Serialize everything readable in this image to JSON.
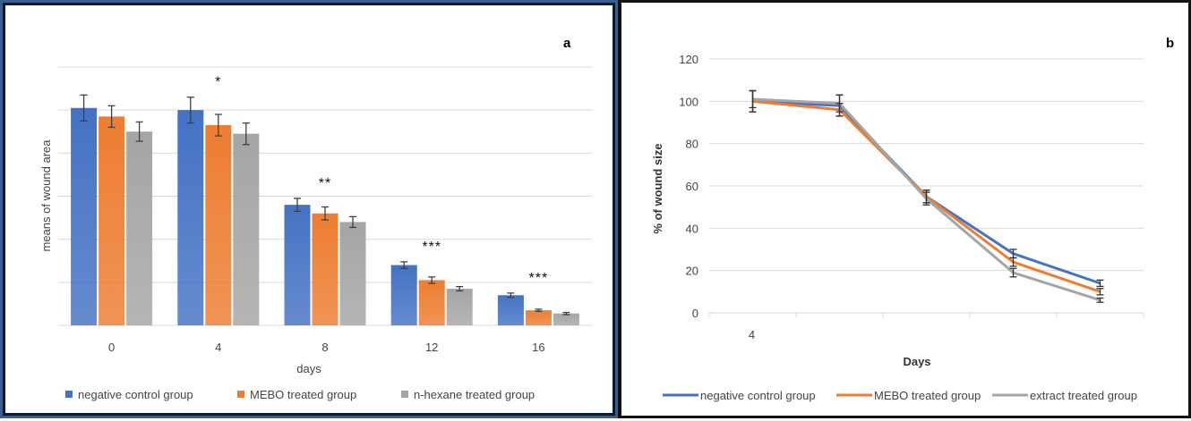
{
  "colors": {
    "blue": "#4472C4",
    "orange": "#ED7D31",
    "gray": "#A5A5A5",
    "grid": "#d9d9d9",
    "error": "#404040"
  },
  "chart_data": [
    {
      "panel_label": "a",
      "type": "bar",
      "xlabel": "days",
      "ylabel": "means of wound area",
      "categories": [
        "0",
        "4",
        "8",
        "12",
        "16"
      ],
      "ylim": [
        0,
        120
      ],
      "series": [
        {
          "name": "negative control group",
          "color": "#4472C4",
          "values": [
            101,
            100,
            56,
            28,
            14
          ],
          "error": [
            6,
            6,
            3,
            1.5,
            1
          ]
        },
        {
          "name": "MEBO treated group",
          "color": "#ED7D31",
          "values": [
            97,
            93,
            52,
            21,
            7
          ],
          "error": [
            5,
            5,
            3,
            1.5,
            0.5
          ]
        },
        {
          "name": "n-hexane treated group",
          "color": "#A5A5A5",
          "values": [
            90,
            89,
            48,
            17,
            5.5
          ],
          "error": [
            4.5,
            5,
            2.5,
            1,
            0.5
          ]
        }
      ],
      "annotations": [
        "",
        "*",
        "**",
        "***",
        "***"
      ],
      "legend": "bottom",
      "grid": true
    },
    {
      "panel_label": "b",
      "type": "line",
      "xlabel": "Days",
      "ylabel": "% of wound size",
      "x_tick_labels": [
        "4",
        "",
        "",
        "",
        ""
      ],
      "ylim": [
        0,
        120
      ],
      "yticks": [
        0,
        20,
        40,
        60,
        80,
        100,
        120
      ],
      "series": [
        {
          "name": "negative control group",
          "color": "#4472C4",
          "values": [
            100,
            98,
            55,
            28,
            14
          ],
          "error": [
            5,
            5,
            3,
            2,
            1.5
          ]
        },
        {
          "name": "MEBO treated group",
          "color": "#ED7D31",
          "values": [
            100,
            96,
            55,
            24,
            10
          ],
          "error": [
            5,
            3,
            3,
            2,
            1.5
          ]
        },
        {
          "name": "extract  treated group",
          "color": "#A5A5A5",
          "values": [
            101,
            99,
            54,
            19,
            6
          ],
          "error": [
            4,
            4,
            3,
            2,
            1
          ]
        }
      ],
      "legend": "bottom",
      "grid": true
    }
  ]
}
